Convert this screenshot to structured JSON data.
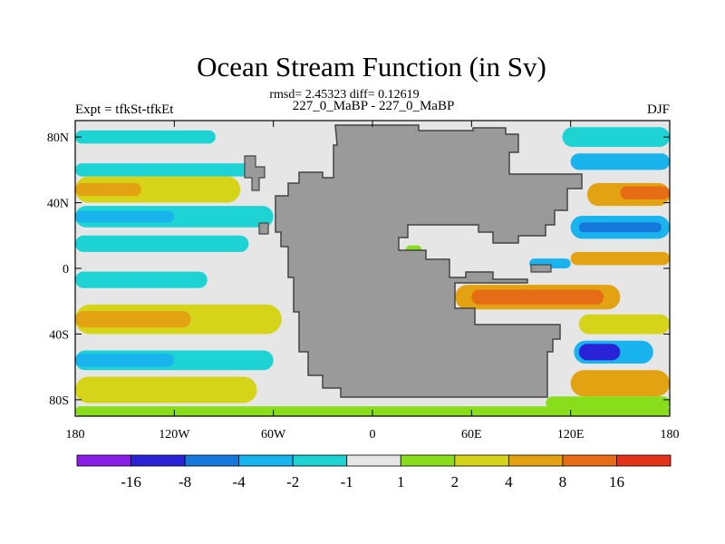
{
  "chart_data": {
    "type": "heatmap",
    "title": "Ocean Stream Function (in Sv)",
    "subtitle": "rmsd= 2.45323 diff= 0.12619",
    "center_label": "227_0_MaBP - 227_0_MaBP",
    "left_label": "Expt = tfkSt-tfkEt",
    "right_label": "DJF",
    "x_ticks": [
      "180",
      "120W",
      "60W",
      "0",
      "60E",
      "120E",
      "180"
    ],
    "x_tick_values": [
      -180,
      -120,
      -60,
      0,
      60,
      120,
      180
    ],
    "y_ticks": [
      "80N",
      "40N",
      "0",
      "40S",
      "80S"
    ],
    "y_tick_values": [
      80,
      40,
      0,
      -40,
      -80
    ],
    "xlim": [
      -180,
      180
    ],
    "ylim": [
      -90,
      90
    ],
    "colorbar": {
      "colors": [
        "#8a1ee6",
        "#2a22d6",
        "#1678dd",
        "#19b4ee",
        "#1dd3d3",
        "#e6e6e6",
        "#88de1a",
        "#d6d418",
        "#e3a212",
        "#e66d16",
        "#e4321a"
      ],
      "tick_labels": [
        "-16",
        "-8",
        "-4",
        "-2",
        "-1",
        "1",
        "2",
        "4",
        "8",
        "16"
      ]
    },
    "land_color": "#9a9a9a",
    "background_color": "#e6e6e6",
    "bands": [
      {
        "lon0": -180,
        "lon1": -95,
        "lat0": 76,
        "lat1": 84,
        "level": 4
      },
      {
        "lon0": -180,
        "lon1": -70,
        "lat0": 56,
        "lat1": 64,
        "level": 4
      },
      {
        "lon0": -180,
        "lon1": -80,
        "lat0": 40,
        "lat1": 56,
        "level": 7
      },
      {
        "lon0": -180,
        "lon1": -140,
        "lat0": 44,
        "lat1": 52,
        "level": 8
      },
      {
        "lon0": -180,
        "lon1": -60,
        "lat0": 25,
        "lat1": 38,
        "level": 4
      },
      {
        "lon0": -180,
        "lon1": -120,
        "lat0": 28,
        "lat1": 35,
        "level": 3
      },
      {
        "lon0": -180,
        "lon1": -75,
        "lat0": 10,
        "lat1": 20,
        "level": 4
      },
      {
        "lon0": -180,
        "lon1": -100,
        "lat0": -12,
        "lat1": -2,
        "level": 4
      },
      {
        "lon0": -180,
        "lon1": -55,
        "lat0": -40,
        "lat1": -22,
        "level": 7
      },
      {
        "lon0": -180,
        "lon1": -110,
        "lat0": -36,
        "lat1": -26,
        "level": 8
      },
      {
        "lon0": -180,
        "lon1": -60,
        "lat0": -62,
        "lat1": -50,
        "level": 4
      },
      {
        "lon0": -180,
        "lon1": -120,
        "lat0": -60,
        "lat1": -52,
        "level": 3
      },
      {
        "lon0": -180,
        "lon1": -70,
        "lat0": -82,
        "lat1": -66,
        "level": 7
      },
      {
        "lon0": -180,
        "lon1": 180,
        "lat0": -90,
        "lat1": -84,
        "level": 6
      },
      {
        "lon0": 115,
        "lon1": 180,
        "lat0": 74,
        "lat1": 86,
        "level": 4
      },
      {
        "lon0": 120,
        "lon1": 180,
        "lat0": 60,
        "lat1": 70,
        "level": 3
      },
      {
        "lon0": 130,
        "lon1": 180,
        "lat0": 38,
        "lat1": 52,
        "level": 8
      },
      {
        "lon0": 150,
        "lon1": 180,
        "lat0": 42,
        "lat1": 50,
        "level": 9
      },
      {
        "lon0": 120,
        "lon1": 180,
        "lat0": 18,
        "lat1": 32,
        "level": 3
      },
      {
        "lon0": 125,
        "lon1": 175,
        "lat0": 22,
        "lat1": 28,
        "level": 2
      },
      {
        "lon0": 120,
        "lon1": 180,
        "lat0": 2,
        "lat1": 10,
        "level": 8
      },
      {
        "lon0": 50,
        "lon1": 150,
        "lat0": -25,
        "lat1": -10,
        "level": 8
      },
      {
        "lon0": 60,
        "lon1": 140,
        "lat0": -22,
        "lat1": -13,
        "level": 9
      },
      {
        "lon0": 125,
        "lon1": 180,
        "lat0": -40,
        "lat1": -28,
        "level": 7
      },
      {
        "lon0": 122,
        "lon1": 170,
        "lat0": -58,
        "lat1": -44,
        "level": 3
      },
      {
        "lon0": 125,
        "lon1": 150,
        "lat0": -56,
        "lat1": -46,
        "level": 1
      },
      {
        "lon0": 120,
        "lon1": 180,
        "lat0": -78,
        "lat1": -62,
        "level": 8
      },
      {
        "lon0": 105,
        "lon1": 180,
        "lat0": -86,
        "lat1": -78,
        "level": 6
      },
      {
        "lon0": 20,
        "lon1": 30,
        "lat0": 8,
        "lat1": 14,
        "level": 6
      },
      {
        "lon0": 95,
        "lon1": 120,
        "lat0": 0,
        "lat1": 6,
        "level": 3
      }
    ]
  }
}
